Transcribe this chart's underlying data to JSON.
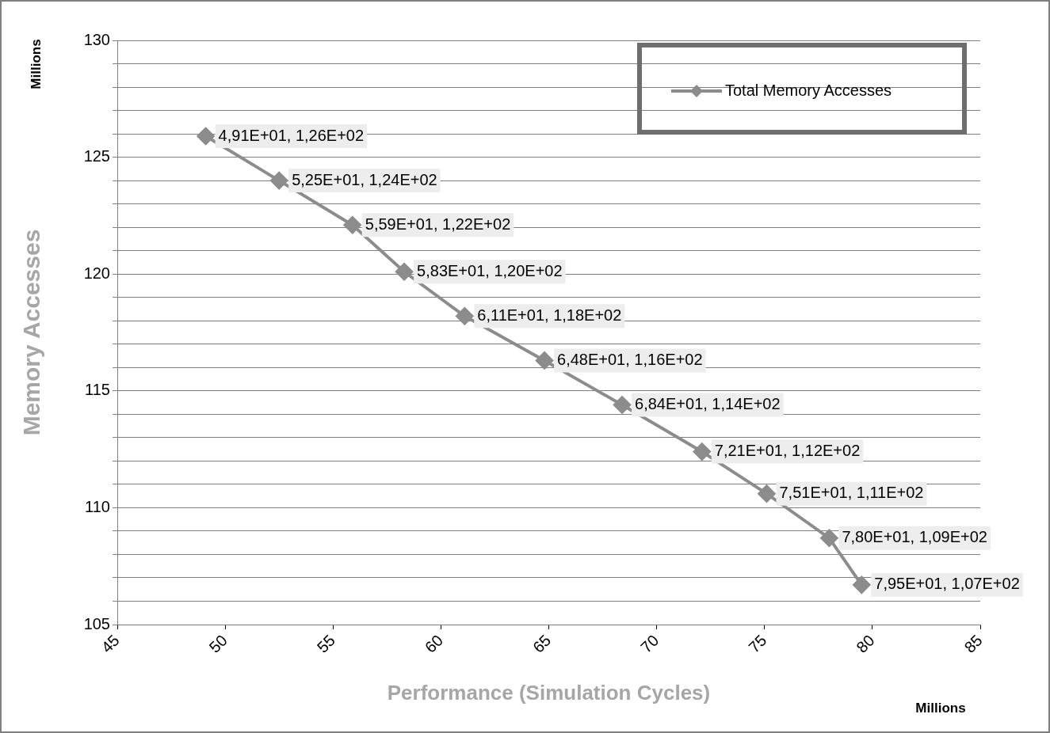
{
  "chart_data": {
    "type": "line",
    "xlabel": "Performance (Simulation Cycles)",
    "ylabel": "Memory Accesses",
    "annotations": [
      "Millions",
      "Millions",
      {
        "text": "4,91E+01, 1,26E+02",
        "x": 49.1,
        "y": 125.9
      },
      {
        "text": "5,25E+01, 1,24E+02",
        "x": 52.5,
        "y": 124.0
      },
      {
        "text": "5,59E+01, 1,22E+02",
        "x": 55.9,
        "y": 122.1
      },
      {
        "text": "5,83E+01, 1,20E+02",
        "x": 58.3,
        "y": 120.1
      },
      {
        "text": "6,11E+01, 1,18E+02",
        "x": 61.1,
        "y": 118.2
      },
      {
        "text": "6,48E+01, 1,16E+02",
        "x": 64.8,
        "y": 116.3
      },
      {
        "text": "6,84E+01, 1,14E+02",
        "x": 68.4,
        "y": 114.4
      },
      {
        "text": "7,21E+01, 1,12E+02",
        "x": 72.1,
        "y": 112.4
      },
      {
        "text": "7,51E+01, 1,11E+02",
        "x": 75.1,
        "y": 110.6
      },
      {
        "text": "7,80E+01, 1,09E+02",
        "x": 78.0,
        "y": 108.7
      },
      {
        "text": "7,95E+01, 1,07E+02",
        "x": 79.5,
        "y": 106.7
      }
    ],
    "x": [
      49.1,
      52.5,
      55.9,
      58.3,
      61.1,
      64.8,
      68.4,
      72.1,
      75.1,
      78.0,
      79.5
    ],
    "series": [
      {
        "name": "Total Memory Accesses",
        "color": "#8c8c8c",
        "values": [
          125.9,
          124.0,
          122.1,
          120.1,
          118.2,
          116.3,
          114.4,
          112.4,
          110.6,
          108.7,
          106.7
        ]
      }
    ],
    "xlim": [
      45,
      85
    ],
    "xticks": [
      45,
      50,
      55,
      60,
      65,
      70,
      75,
      80,
      85
    ],
    "ylim": [
      105,
      130
    ],
    "yticks": [
      105,
      {
        "value": 106,
        "label": null
      },
      {
        "value": 107,
        "label": null
      },
      {
        "value": 108,
        "label": null
      },
      {
        "value": 109,
        "label": null
      },
      110,
      {
        "value": 111,
        "label": null
      },
      {
        "value": 112,
        "label": null
      },
      {
        "value": 113,
        "label": null
      },
      {
        "value": 114,
        "label": null
      },
      115,
      {
        "value": 116,
        "label": null
      },
      {
        "value": 117,
        "label": null
      },
      {
        "value": 118,
        "label": null
      },
      {
        "value": 119,
        "label": null
      },
      120,
      {
        "value": 121,
        "label": null
      },
      {
        "value": 122,
        "label": null
      },
      {
        "value": 123,
        "label": null
      },
      {
        "value": 124,
        "label": null
      },
      125,
      {
        "value": 126,
        "label": null
      },
      {
        "value": 127,
        "label": null
      },
      {
        "value": 128,
        "label": null
      },
      {
        "value": 129,
        "label": null
      },
      130
    ],
    "grid": "y",
    "legend": "top right",
    "marker": "diamond",
    "line_style": "solid"
  }
}
